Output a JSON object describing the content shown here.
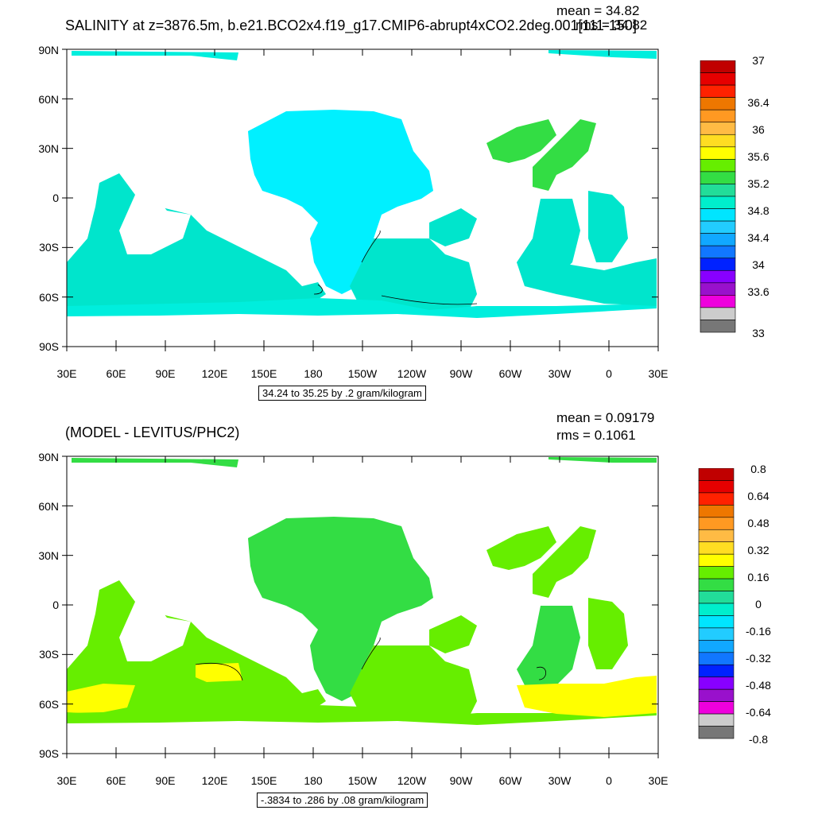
{
  "panels": [
    {
      "title": "SALINITY at z=3876.5m, b.e21.BCO2x4.f19_g17.CMIP6-abrupt4xCO2.2deg.001[111-150]",
      "stats": [
        "mean = 34.82",
        "rms = 34.82"
      ],
      "info": "34.24 to 35.25 by .2 gram/kilogram",
      "colorbar_labels": [
        "37",
        "36.4",
        "36",
        "35.6",
        "35.2",
        "34.8",
        "34.4",
        "34",
        "33.6",
        "33"
      ]
    },
    {
      "title": "(MODEL - LEVITUS/PHC2)",
      "stats": [
        "mean = 0.09179",
        "rms = 0.1061"
      ],
      "info": "-.3834 to .286 by .08 gram/kilogram",
      "colorbar_labels": [
        "0.8",
        "0.64",
        "0.48",
        "0.32",
        "0.16",
        "0",
        "-0.16",
        "-0.32",
        "-0.48",
        "-0.64",
        "-0.8"
      ]
    }
  ],
  "colorbar_colors": [
    "#c00000",
    "#e60000",
    "#ff2200",
    "#ee7700",
    "#ff9922",
    "#ffbb44",
    "#ffdd22",
    "#ffff00",
    "#66ee00",
    "#33dd44",
    "#22dd99",
    "#00eecc",
    "#00e5ff",
    "#22ccff",
    "#11a8ff",
    "#1177ff",
    "#0022ff",
    "#8800ff",
    "#9911cc",
    "#ee00dd",
    "#cccccc",
    "#777777"
  ],
  "chart_data": [
    {
      "type": "heatmap",
      "title": "SALINITY at z=3876.5m, b.e21.BCO2x4.f19_g17.CMIP6-abrupt4xCO2.2deg.001[111-150]",
      "x_ticks": [
        "30E",
        "60E",
        "90E",
        "120E",
        "150E",
        "180",
        "150W",
        "120W",
        "90W",
        "60W",
        "30W",
        "0",
        "30E"
      ],
      "y_ticks": [
        "90N",
        "60N",
        "30N",
        "0",
        "30S",
        "60S",
        "90S"
      ],
      "contour_range": [
        34.24,
        35.25
      ],
      "contour_interval": 0.2,
      "units": "gram/kilogram",
      "mean": 34.82,
      "rms": 34.82
    },
    {
      "type": "heatmap",
      "title": "(MODEL - LEVITUS/PHC2)",
      "x_ticks": [
        "30E",
        "60E",
        "90E",
        "120E",
        "150E",
        "180",
        "150W",
        "120W",
        "90W",
        "60W",
        "30W",
        "0",
        "30E"
      ],
      "y_ticks": [
        "90N",
        "60N",
        "30N",
        "0",
        "30S",
        "60S",
        "90S"
      ],
      "contour_range": [
        -0.3834,
        0.286
      ],
      "contour_interval": 0.08,
      "units": "gram/kilogram",
      "mean": 0.09179,
      "rms": 0.1061
    }
  ]
}
